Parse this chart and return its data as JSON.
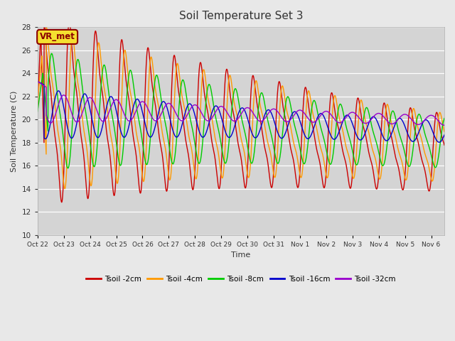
{
  "title": "Soil Temperature Set 3",
  "xlabel": "Time",
  "ylabel": "Soil Temperature (C)",
  "ylim": [
    10,
    28
  ],
  "yticks": [
    10,
    12,
    14,
    16,
    18,
    20,
    22,
    24,
    26,
    28
  ],
  "annotation": "VR_met",
  "legend_labels": [
    "Tsoil -2cm",
    "Tsoil -4cm",
    "Tsoil -8cm",
    "Tsoil -16cm",
    "Tsoil -32cm"
  ],
  "line_colors": [
    "#cc0000",
    "#ff9900",
    "#00cc00",
    "#0000cc",
    "#9900cc"
  ],
  "background_color": "#e8e8e8",
  "plot_bg_color": "#d4d4d4",
  "n_days": 15.5,
  "points_per_day": 240
}
